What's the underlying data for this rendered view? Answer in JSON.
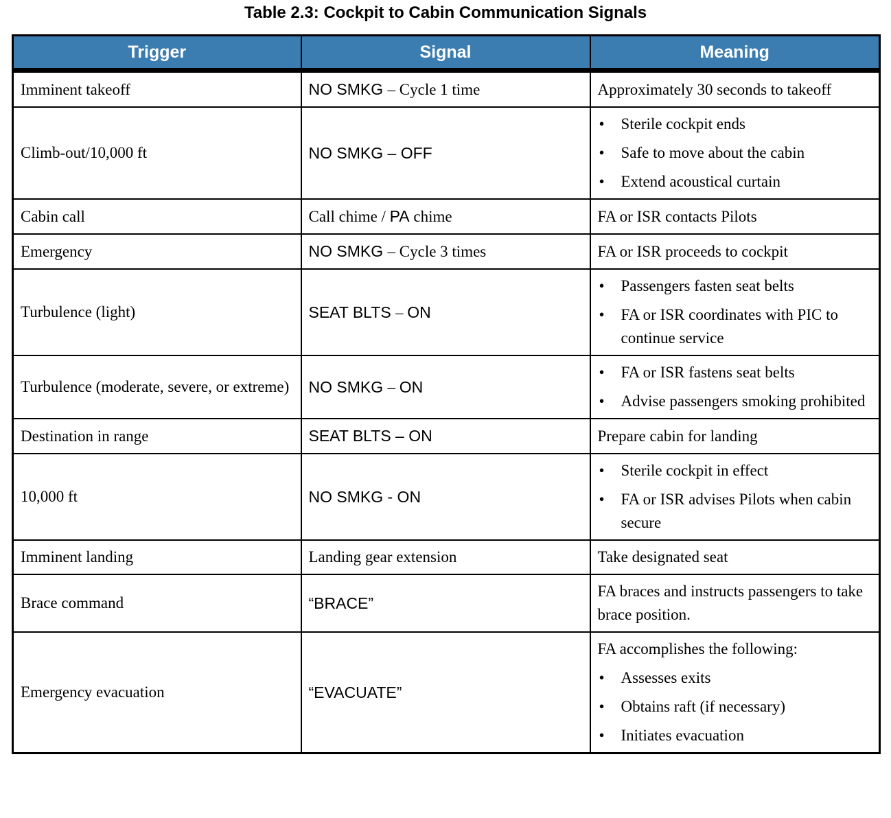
{
  "title": "Table 2.3: Cockpit to Cabin Communication Signals",
  "colors": {
    "header_bg": "#3B7CB1",
    "header_text": "#FFFFFF",
    "border": "#000000"
  },
  "table": {
    "headers": [
      "Trigger",
      "Signal",
      "Meaning"
    ],
    "bullet_glyph": "•",
    "rows": [
      {
        "trigger": "Imminent takeoff",
        "signal": [
          {
            "text": "NO SMKG ",
            "font": "sans"
          },
          {
            "text": "– Cycle 1 time",
            "font": "serif"
          }
        ],
        "meaning": {
          "text": "Approximately 30 seconds to takeoff"
        }
      },
      {
        "trigger": "Climb-out/10,000 ft",
        "signal": [
          {
            "text": "NO SMKG – OFF",
            "font": "sans"
          }
        ],
        "meaning": {
          "bullets": [
            "Sterile cockpit ends",
            "Safe to move about the cabin",
            "Extend acoustical curtain"
          ]
        }
      },
      {
        "trigger": "Cabin call",
        "signal": [
          {
            "text": "Call chime / ",
            "font": "serif"
          },
          {
            "text": "PA",
            "font": "sans"
          },
          {
            "text": " chime",
            "font": "serif"
          }
        ],
        "meaning": {
          "text": "FA or ISR contacts Pilots"
        }
      },
      {
        "trigger": "Emergency",
        "signal": [
          {
            "text": "NO SMKG ",
            "font": "sans"
          },
          {
            "text": "– Cycle 3 times",
            "font": "serif"
          }
        ],
        "meaning": {
          "text": "FA or ISR proceeds to cockpit"
        }
      },
      {
        "trigger": "Turbulence (light)",
        "signal": [
          {
            "text": "SEAT BLTS ",
            "font": "sans"
          },
          {
            "text": "– ",
            "font": "serif"
          },
          {
            "text": "ON",
            "font": "sans"
          }
        ],
        "meaning": {
          "bullets": [
            "Passengers fasten seat belts",
            "FA or ISR coordinates with PIC to continue service"
          ]
        }
      },
      {
        "trigger": "Turbulence (moderate, severe, or extreme)",
        "signal": [
          {
            "text": "NO SMKG ",
            "font": "sans"
          },
          {
            "text": "– ",
            "font": "serif"
          },
          {
            "text": "ON",
            "font": "sans"
          }
        ],
        "meaning": {
          "bullets": [
            "FA or ISR fastens seat belts",
            "Advise passengers smoking prohibited"
          ]
        }
      },
      {
        "trigger": "Destination in range",
        "signal": [
          {
            "text": "SEAT BLTS – ON",
            "font": "sans"
          }
        ],
        "meaning": {
          "text": "Prepare cabin for landing"
        }
      },
      {
        "trigger": "10,000 ft",
        "signal": [
          {
            "text": "NO SMKG - ON",
            "font": "sans"
          }
        ],
        "meaning": {
          "bullets": [
            "Sterile cockpit in effect",
            "FA or ISR advises Pilots when cabin secure"
          ]
        }
      },
      {
        "trigger": "Imminent landing",
        "signal": [
          {
            "text": "Landing gear extension",
            "font": "serif"
          }
        ],
        "meaning": {
          "text": "Take designated seat"
        }
      },
      {
        "trigger": "Brace command",
        "signal": [
          {
            "text": "“BRACE”",
            "font": "sans"
          }
        ],
        "meaning": {
          "text": "FA braces and instructs passengers to take brace position."
        }
      },
      {
        "trigger": "Emergency evacuation",
        "signal": [
          {
            "text": "“EVACUATE”",
            "font": "sans"
          }
        ],
        "meaning": {
          "intro": "FA accomplishes the following:",
          "bullets": [
            "Assesses exits",
            "Obtains raft (if necessary)",
            "Initiates evacuation"
          ]
        }
      }
    ]
  }
}
